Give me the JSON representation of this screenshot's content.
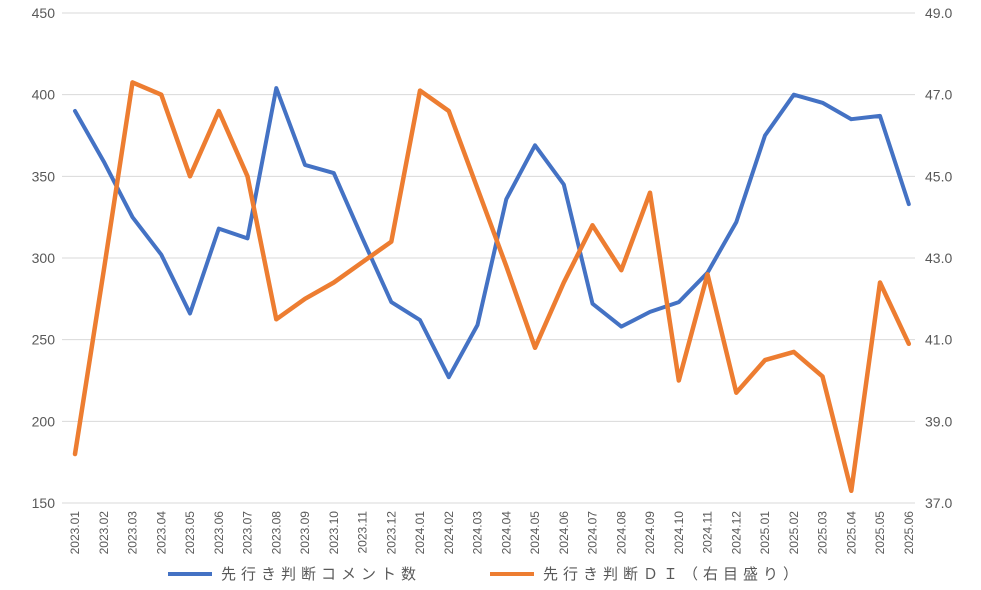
{
  "chart_data": {
    "type": "line",
    "title": "",
    "xlabel": "",
    "ylabel_left": "",
    "ylabel_right": "",
    "grid": true,
    "legend_position": "bottom",
    "background": "#ffffff",
    "gridline_color": "#d9d9d9",
    "label_color": "#595959",
    "categories": [
      "2023.01",
      "2023.02",
      "2023.03",
      "2023.04",
      "2023.05",
      "2023.06",
      "2023.07",
      "2023.08",
      "2023.09",
      "2023.10",
      "2023.11",
      "2023.12",
      "2024.01",
      "2024.02",
      "2024.03",
      "2024.04",
      "2024.05",
      "2024.06",
      "2024.07",
      "2024.08",
      "2024.09",
      "2024.10",
      "2024.11",
      "2024.12",
      "2025.01",
      "2025.02",
      "2025.03",
      "2025.04",
      "2025.05",
      "2025.06"
    ],
    "series": [
      {
        "name": "先行き判断コメント数",
        "axis": "left",
        "color": "#4472C4",
        "values": [
          390,
          359,
          325,
          302,
          266,
          318,
          312,
          404,
          357,
          352,
          312,
          273,
          262,
          227,
          259,
          336,
          369,
          345,
          272,
          258,
          267,
          273,
          291,
          322,
          375,
          400,
          395,
          385,
          387,
          333
        ]
      },
      {
        "name": "先行き判断ＤＩ（右目盛り）",
        "axis": "right",
        "color": "#ED7D31",
        "values": [
          38.2,
          42.7,
          47.3,
          47.0,
          45.0,
          46.6,
          45.0,
          41.5,
          42.0,
          42.4,
          42.9,
          43.4,
          47.1,
          46.6,
          44.7,
          42.8,
          40.8,
          42.4,
          43.8,
          42.7,
          44.6,
          40.0,
          42.6,
          39.7,
          40.5,
          40.7,
          40.1,
          37.3,
          42.4,
          40.9
        ]
      }
    ],
    "left_axis": {
      "min": 150,
      "max": 450,
      "step": 50,
      "ticks": [
        "450",
        "400",
        "350",
        "300",
        "250",
        "200",
        "150"
      ]
    },
    "right_axis": {
      "min": 37.0,
      "max": 49.0,
      "step": 2.0,
      "ticks": [
        "49.0",
        "47.0",
        "45.0",
        "43.0",
        "41.0",
        "39.0",
        "37.0"
      ]
    }
  }
}
